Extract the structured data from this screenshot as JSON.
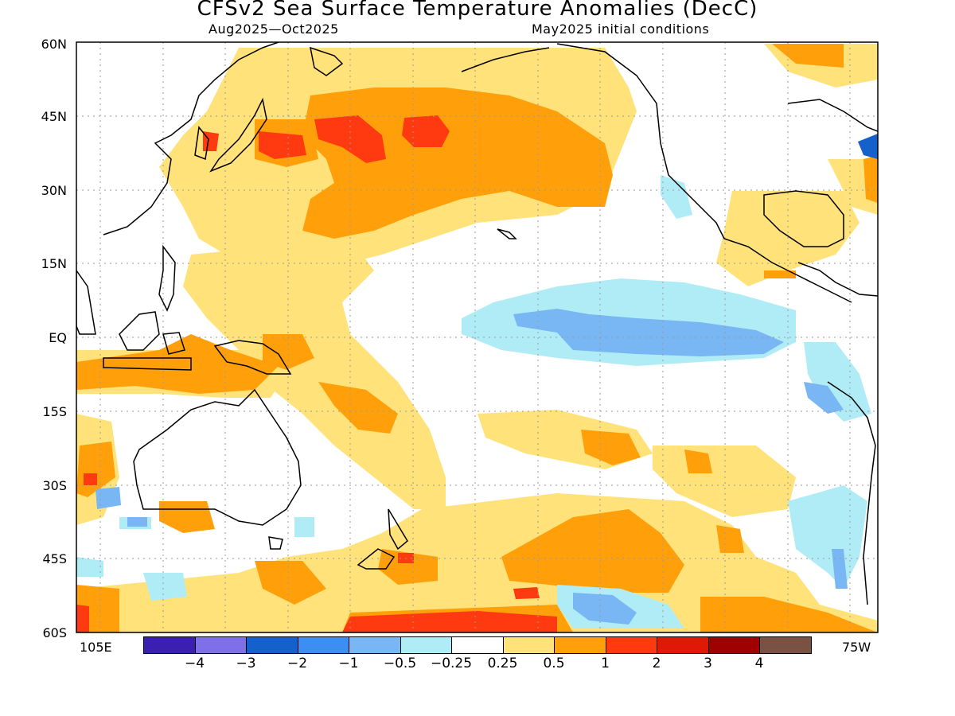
{
  "title": "CFSv2 Sea Surface Temperature Anomalies (DecC)",
  "period": "Aug2025—Oct2025",
  "initial_conditions": "May2025 initial conditions",
  "lat_labels": [
    "60N",
    "45N",
    "30N",
    "15N",
    "EQ",
    "15S",
    "30S",
    "45S",
    "60S"
  ],
  "lon_left": "105E",
  "lon_right": "75W",
  "legend": {
    "colors": [
      "#3b1fb0",
      "#8070e8",
      "#1660cc",
      "#3c8ef0",
      "#78b6f4",
      "#b0ecf6",
      "#ffffff",
      "#ffe27a",
      "#ffa00a",
      "#ff3a10",
      "#e01808",
      "#a00000",
      "#7a5244"
    ],
    "labels": [
      "−4",
      "−3",
      "−2",
      "−1",
      "−0.5",
      "−0.25",
      "0.25",
      "0.5",
      "1",
      "2",
      "3",
      "4"
    ]
  }
}
